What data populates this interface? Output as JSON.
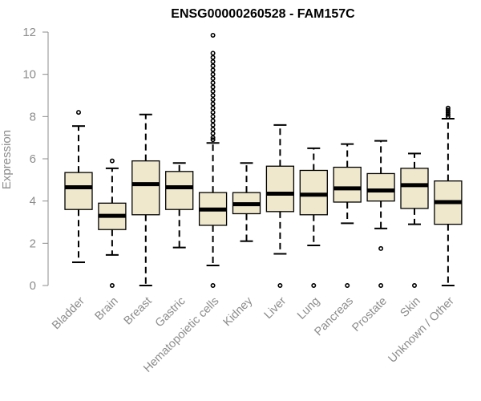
{
  "chart_data": {
    "type": "boxplot",
    "title": "ENSG00000260528 - FAM157C",
    "ylabel": "Expression",
    "xlabel": "",
    "ylim": [
      0,
      12
    ],
    "yticks": [
      0,
      2,
      4,
      6,
      8,
      10,
      12
    ],
    "grid": false,
    "legend": "none",
    "colors": {
      "box_fill": "#f0e8cc",
      "box_stroke": "#000000",
      "median": "#000000",
      "axis": "#8c8c8c"
    },
    "categories": [
      "Bladder",
      "Brain",
      "Breast",
      "Gastric",
      "Hematopoietic cells",
      "Kidney",
      "Liver",
      "Lung",
      "Pancreas",
      "Prostate",
      "Skin",
      "Unknown / Other"
    ],
    "boxes": [
      {
        "label": "Bladder",
        "whisker_low": 1.1,
        "q1": 3.6,
        "median": 4.65,
        "q3": 5.35,
        "whisker_high": 7.55,
        "outliers": [
          8.2
        ]
      },
      {
        "label": "Brain",
        "whisker_low": 1.45,
        "q1": 2.65,
        "median": 3.3,
        "q3": 3.9,
        "whisker_high": 5.55,
        "outliers": [
          0,
          5.9
        ]
      },
      {
        "label": "Breast",
        "whisker_low": 0,
        "q1": 3.35,
        "median": 4.8,
        "q3": 5.9,
        "whisker_high": 8.1,
        "outliers": []
      },
      {
        "label": "Gastric",
        "whisker_low": 1.8,
        "q1": 3.6,
        "median": 4.65,
        "q3": 5.4,
        "whisker_high": 5.8,
        "outliers": []
      },
      {
        "label": "Hematopoietic cells",
        "whisker_low": 0.95,
        "q1": 2.85,
        "median": 3.6,
        "q3": 4.4,
        "whisker_high": 6.75,
        "outliers": [
          0,
          6.9,
          7.0,
          7.2,
          7.4,
          7.6,
          7.8,
          8.0,
          8.2,
          8.4,
          8.6,
          8.8,
          9.0,
          9.2,
          9.4,
          9.6,
          9.8,
          10.0,
          10.2,
          10.4,
          10.6,
          10.8,
          11.0,
          11.85
        ]
      },
      {
        "label": "Kidney",
        "whisker_low": 2.1,
        "q1": 3.4,
        "median": 3.85,
        "q3": 4.4,
        "whisker_high": 5.8,
        "outliers": []
      },
      {
        "label": "Liver",
        "whisker_low": 1.5,
        "q1": 3.5,
        "median": 4.35,
        "q3": 5.65,
        "whisker_high": 7.6,
        "outliers": [
          0
        ]
      },
      {
        "label": "Lung",
        "whisker_low": 1.9,
        "q1": 3.35,
        "median": 4.3,
        "q3": 5.45,
        "whisker_high": 6.5,
        "outliers": [
          0
        ]
      },
      {
        "label": "Pancreas",
        "whisker_low": 2.95,
        "q1": 3.95,
        "median": 4.6,
        "q3": 5.6,
        "whisker_high": 6.7,
        "outliers": [
          0
        ]
      },
      {
        "label": "Prostate",
        "whisker_low": 2.7,
        "q1": 4.0,
        "median": 4.5,
        "q3": 5.3,
        "whisker_high": 6.85,
        "outliers": [
          0,
          1.75
        ]
      },
      {
        "label": "Skin",
        "whisker_low": 2.9,
        "q1": 3.65,
        "median": 4.75,
        "q3": 5.55,
        "whisker_high": 6.25,
        "outliers": [
          0
        ]
      },
      {
        "label": "Unknown / Other",
        "whisker_low": 0,
        "q1": 2.9,
        "median": 3.95,
        "q3": 4.95,
        "whisker_high": 7.9,
        "outliers": [
          8.0,
          8.1,
          8.2,
          8.3,
          8.4
        ]
      }
    ]
  }
}
